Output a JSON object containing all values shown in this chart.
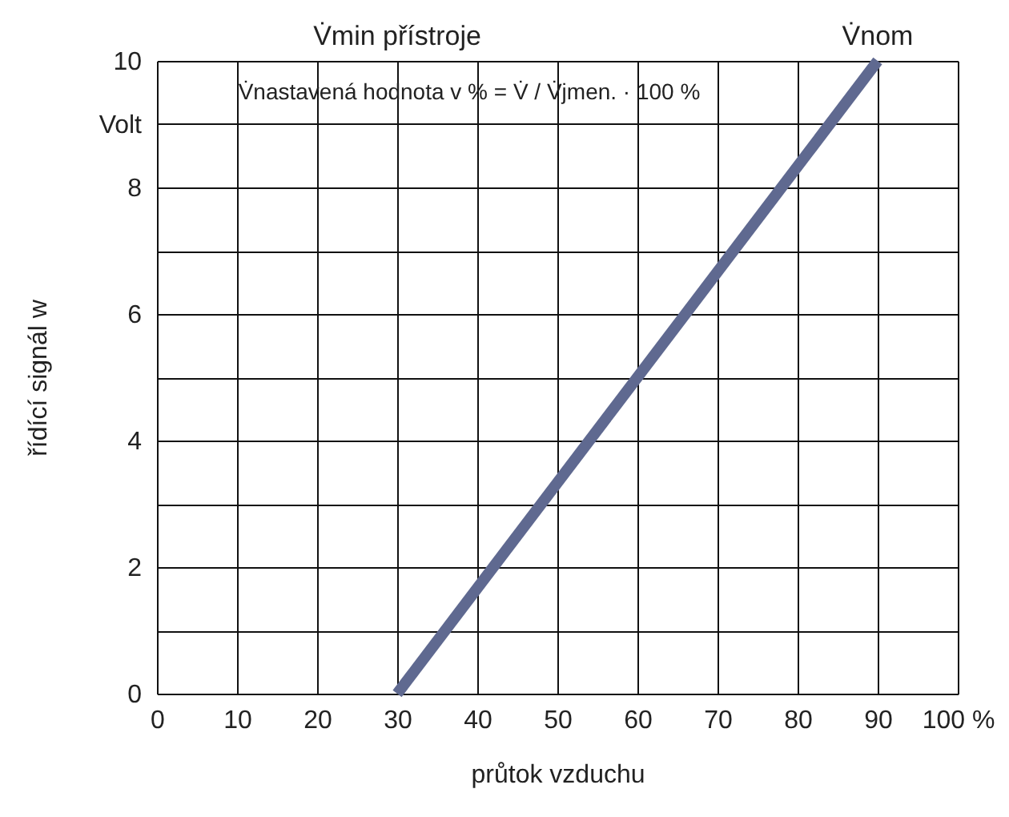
{
  "chart_data": {
    "type": "line",
    "x": [
      30,
      90
    ],
    "series": [
      {
        "color": "#5f6990",
        "values": [
          0,
          10
        ]
      }
    ],
    "xlabel": "průtok vzduchu",
    "ylabel": "řídící signál w",
    "xlim": [
      0,
      100
    ],
    "ylim": [
      0,
      10
    ],
    "xticks": [
      0,
      10,
      20,
      30,
      40,
      50,
      60,
      70,
      80,
      90,
      {
        "value": 100,
        "label": "100 %"
      }
    ],
    "yticks": [
      0,
      {
        "value": 1,
        "label": null
      },
      2,
      {
        "value": 3,
        "label": null
      },
      4,
      {
        "value": 5,
        "label": null
      },
      6,
      {
        "value": 7,
        "label": null
      },
      8,
      {
        "value": 9,
        "label": "Volt"
      },
      10
    ],
    "grid": true,
    "marker": "none",
    "line_style": "solid",
    "annotations": [
      "V̇min přístroje",
      "V̇nom",
      "V̇nastavená hodnota v % = V̇ / V̇jmen. · 100 %"
    ]
  }
}
